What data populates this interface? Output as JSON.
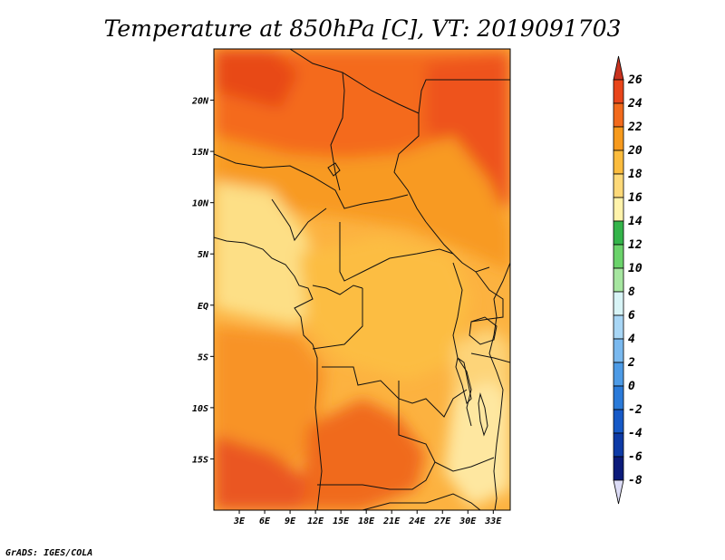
{
  "title": "Temperature at 850hPa [C], VT: 2019091703",
  "credit": "GrADS: IGES/COLA",
  "map": {
    "lon_range": [
      0,
      35
    ],
    "lat_range": [
      -20,
      25
    ],
    "x_ticks": [
      "3E",
      "6E",
      "9E",
      "12E",
      "15E",
      "18E",
      "21E",
      "24E",
      "27E",
      "30E",
      "33E"
    ],
    "x_tick_values": [
      3,
      6,
      9,
      12,
      15,
      18,
      21,
      24,
      27,
      30,
      33
    ],
    "y_ticks": [
      "20N",
      "15N",
      "10N",
      "5N",
      "EQ",
      "5S",
      "10S",
      "15S"
    ],
    "y_tick_values": [
      20,
      15,
      10,
      5,
      0,
      -5,
      -10,
      -15
    ]
  },
  "colorbar": {
    "levels": [
      "26",
      "24",
      "22",
      "20",
      "18",
      "16",
      "14",
      "12",
      "10",
      "8",
      "6",
      "4",
      "2",
      "0",
      "-2",
      "-4",
      "-6",
      "-8"
    ],
    "colors": [
      "#c8321e",
      "#e8451a",
      "#f26a1c",
      "#f79a1d",
      "#fbbc3e",
      "#fdd979",
      "#fff3ab",
      "#34b44a",
      "#6bd36b",
      "#a6e6a0",
      "#d8f4f6",
      "#a8d6f5",
      "#7ab9ef",
      "#4d9be6",
      "#2a7ad9",
      "#1659c7",
      "#0d3aa6",
      "#0b1a7a",
      "#dcdcf6"
    ]
  },
  "fields": {
    "background_color": "#fcb240",
    "regions": [
      {
        "name": "sahara-north",
        "color": "#f46b1e"
      },
      {
        "name": "northwest-hot",
        "color": "#e84819"
      },
      {
        "name": "northeast-hot",
        "color": "#ee531b"
      },
      {
        "name": "sahel-band",
        "color": "#f89a20"
      },
      {
        "name": "gulf-of-guinea-cool",
        "color": "#fddf86"
      },
      {
        "name": "congo-basin",
        "color": "#fcbd42"
      },
      {
        "name": "atlantic-south",
        "color": "#f89325"
      },
      {
        "name": "angola-hot",
        "color": "#f06a1e"
      },
      {
        "name": "southwest-hot",
        "color": "#ea5620"
      },
      {
        "name": "east-highlands",
        "color": "#fdd479"
      },
      {
        "name": "tanzania-cool",
        "color": "#fee7a0"
      }
    ]
  }
}
